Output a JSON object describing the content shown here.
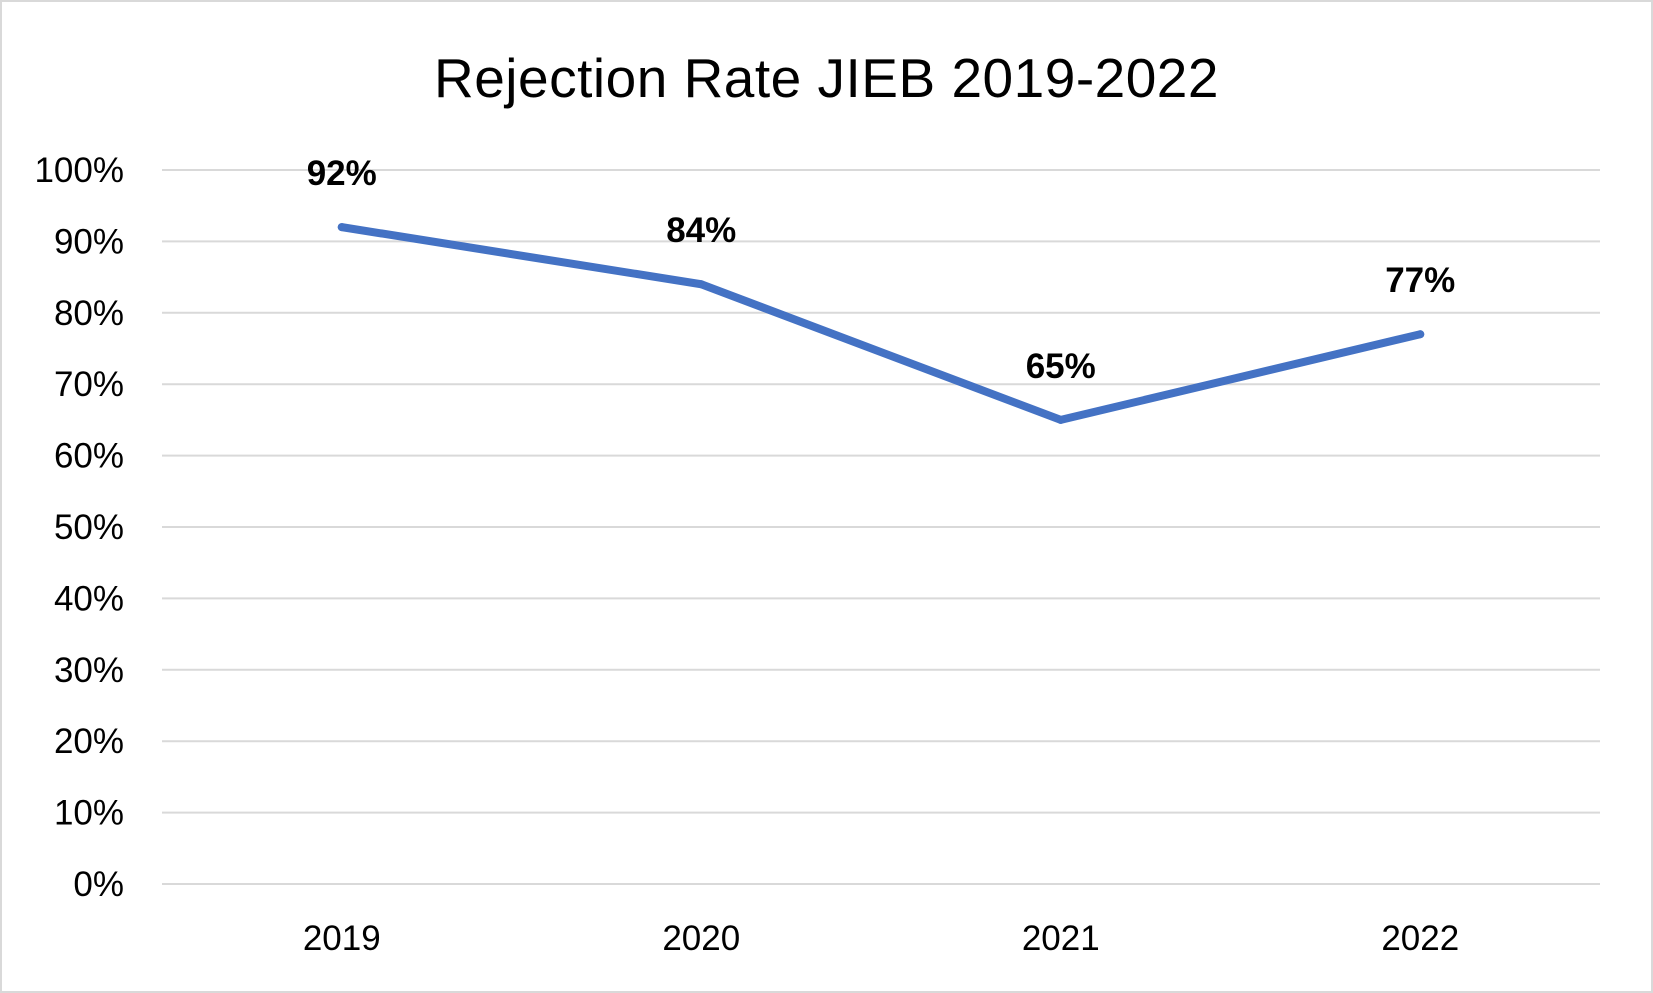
{
  "chart_data": {
    "type": "line",
    "title": "Rejection Rate JIEB 2019-2022",
    "xlabel": "",
    "ylabel": "",
    "categories": [
      "2019",
      "2020",
      "2021",
      "2022"
    ],
    "series": [
      {
        "values": [
          0.92,
          0.84,
          0.65,
          0.77
        ],
        "data_labels": [
          "92%",
          "84%",
          "65%",
          "77%"
        ],
        "color": "#4472c4"
      }
    ],
    "ylim": [
      0,
      1
    ],
    "y_ticks": [
      0,
      0.1,
      0.2,
      0.3,
      0.4,
      0.5,
      0.6,
      0.7,
      0.8,
      0.9,
      1.0
    ],
    "y_tick_labels": [
      "0%",
      "10%",
      "20%",
      "30%",
      "40%",
      "50%",
      "60%",
      "70%",
      "80%",
      "90%",
      "100%"
    ],
    "grid": true,
    "gridline_color": "#d9d9d9",
    "legend": "none"
  }
}
